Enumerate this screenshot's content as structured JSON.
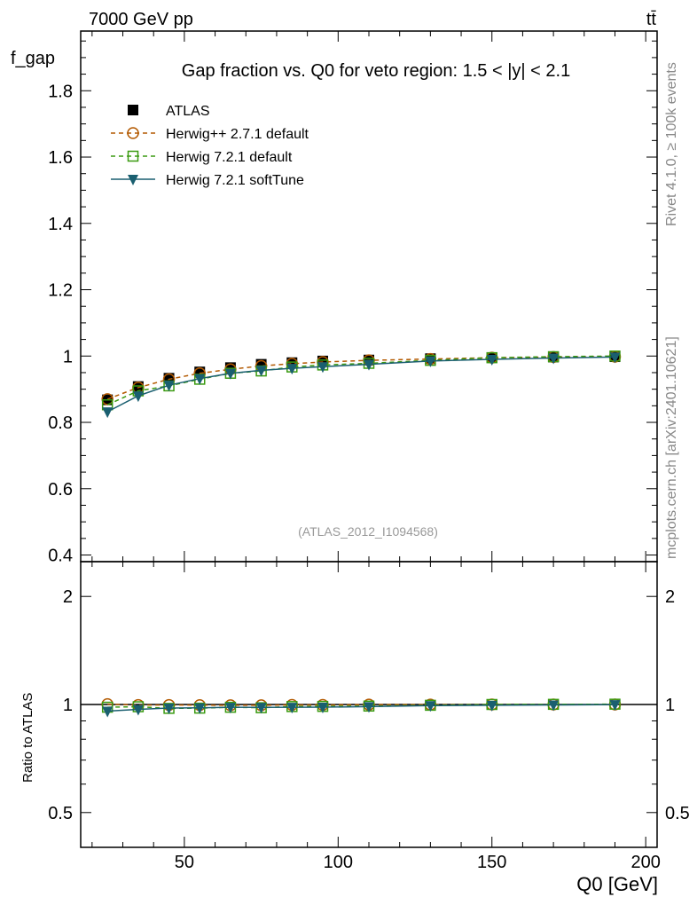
{
  "chart_data": {
    "type": "line",
    "title": "Gap fraction vs. Q0 for veto region: 1.5 < |y| < 2.1",
    "top_left_label": "7000 GeV pp",
    "top_right_label": "tt̄",
    "side_label_1": "Rivet 4.1.0, ≥ 100k events",
    "side_label_2": "mcplots.cern.ch [arXiv:2401.10621]",
    "analysis_label": "(ATLAS_2012_I1094568)",
    "xlabel": "Q0 [GeV]",
    "ylabel": "f_gap",
    "ratio_ylabel": "Ratio to ATLAS",
    "xlim": [
      16.3,
      203.7
    ],
    "ylim": [
      0.38,
      1.98
    ],
    "ratio_ylim": [
      0.4,
      2.5
    ],
    "ratio_scale": "log",
    "xticks": [
      50,
      100,
      150,
      200
    ],
    "yticks": [
      0.4,
      0.6,
      0.8,
      1,
      1.2,
      1.4,
      1.6,
      1.8
    ],
    "ratio_yticks": [
      0.5,
      1,
      2
    ],
    "legend_position": "top-left",
    "x": [
      25,
      35,
      45,
      55,
      65,
      75,
      85,
      95,
      110,
      130,
      150,
      170,
      190
    ],
    "series": [
      {
        "name": "ATLAS",
        "color": "#000000",
        "marker": "square-filled",
        "values": [
          0.868,
          0.908,
          0.933,
          0.952,
          0.965,
          0.975,
          0.98,
          0.985,
          0.988,
          0.992,
          0.995,
          0.997,
          0.998
        ]
      },
      {
        "name": "Herwig++ 2.7.1 default",
        "color": "#b35900",
        "marker": "circle-open",
        "dash": "dashed",
        "values": [
          0.87,
          0.905,
          0.93,
          0.948,
          0.96,
          0.97,
          0.977,
          0.982,
          0.987,
          0.991,
          0.995,
          0.997,
          0.998
        ]
      },
      {
        "name": "Herwig 7.2.1 default",
        "color": "#3a9a10",
        "marker": "square-open",
        "dash": "dashed",
        "values": [
          0.853,
          0.895,
          0.91,
          0.93,
          0.948,
          0.955,
          0.967,
          0.973,
          0.978,
          0.987,
          0.995,
          0.998,
          1.0
        ]
      },
      {
        "name": "Herwig 7.2.1 softTune",
        "color": "#1a5f70",
        "marker": "triangle-down",
        "dash": "solid",
        "values": [
          0.832,
          0.88,
          0.912,
          0.932,
          0.948,
          0.957,
          0.963,
          0.968,
          0.975,
          0.985,
          0.99,
          0.994,
          0.997
        ]
      }
    ]
  }
}
